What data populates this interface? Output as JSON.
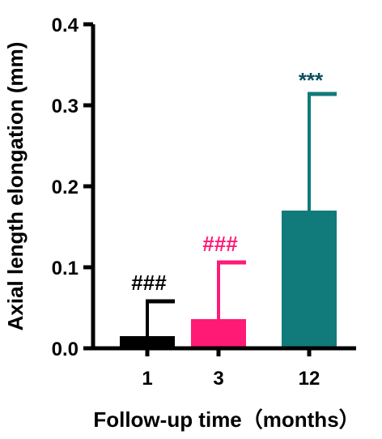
{
  "chart_data": {
    "type": "bar",
    "title": "",
    "xlabel": "Follow-up time（months）",
    "ylabel": "Axial length elongation (mm)",
    "categories": [
      "1",
      "3",
      "12"
    ],
    "values": [
      0.015,
      0.036,
      0.17
    ],
    "error_upper": [
      0.058,
      0.106,
      0.314
    ],
    "annotations": [
      "###",
      "###",
      "***"
    ],
    "colors": [
      "#000000",
      "#ff1a75",
      "#117a7a"
    ],
    "annotation_colors": [
      "#000000",
      "#ff1a75",
      "#0d4f5e"
    ],
    "ylim": [
      0,
      0.4
    ],
    "yticks": [
      "0.0",
      "0.1",
      "0.2",
      "0.3",
      "0.4"
    ],
    "grid": false,
    "legend": "none"
  }
}
